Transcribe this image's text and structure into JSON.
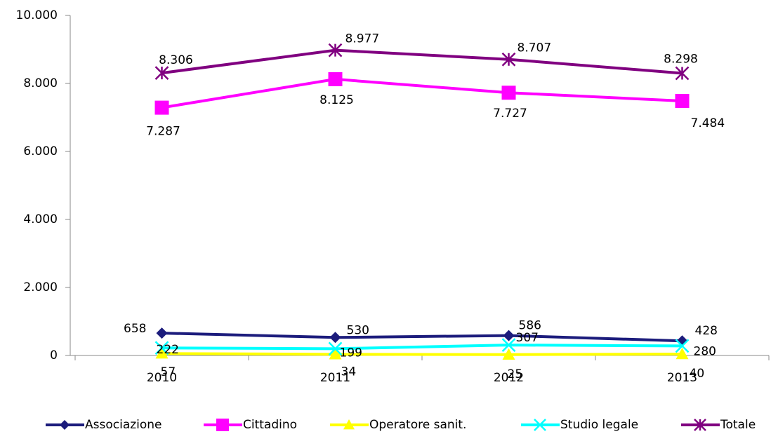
{
  "chart_data": {
    "type": "line",
    "categories": [
      "2010",
      "2011",
      "2012",
      "2013"
    ],
    "series": [
      {
        "name": "Associazione",
        "color": "#1c1c7c",
        "values": [
          658,
          530,
          586,
          428
        ]
      },
      {
        "name": "Cittadino",
        "color": "#ff00ff",
        "values": [
          7287,
          8125,
          7727,
          7484
        ],
        "value_labels": [
          "7.287",
          "8.125",
          "7.727",
          "7.484"
        ]
      },
      {
        "name": "Operatore sanit.",
        "color": "#ffff00",
        "values": [
          57,
          34,
          25,
          40
        ]
      },
      {
        "name": "Studio legale",
        "color": "#00ffff",
        "values": [
          222,
          199,
          307,
          280
        ]
      },
      {
        "name": "Totale",
        "color": "#800080",
        "values": [
          8306,
          8977,
          8707,
          8298
        ],
        "value_labels": [
          "8.306",
          "8.977",
          "8.707",
          "8.298"
        ]
      }
    ],
    "ylim": [
      0,
      10000
    ],
    "yticks": [
      0,
      {
        "value": 2000,
        "label": "2.000"
      },
      {
        "value": 4000,
        "label": "4.000"
      },
      {
        "value": 6000,
        "label": "6.000"
      },
      {
        "value": 8000,
        "label": "8.000"
      },
      {
        "value": 10000,
        "label": "10.000"
      }
    ],
    "legend": "bottom"
  }
}
